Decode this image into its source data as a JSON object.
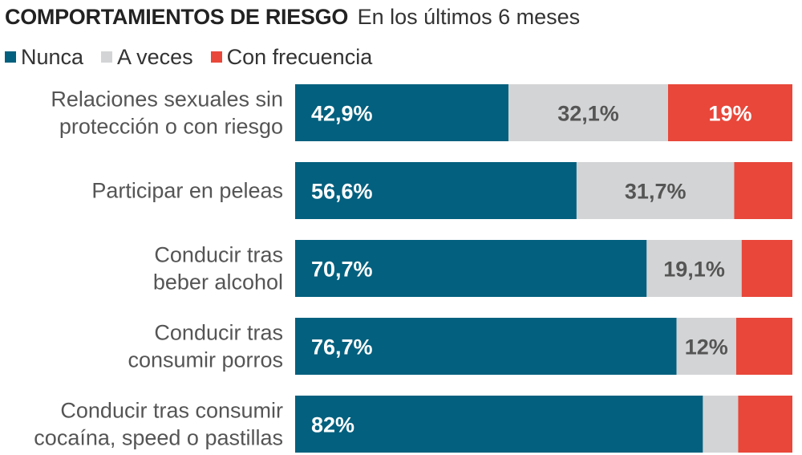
{
  "title": "COMPORTAMIENTOS DE RIESGO",
  "subtitle": "En los últimos 6 meses",
  "colors": {
    "nunca": "#03607e",
    "a_veces": "#d3d4d5",
    "frecuencia": "#e8473a"
  },
  "chart_data": {
    "type": "bar",
    "orientation": "horizontal",
    "stacked": true,
    "normalized": "100%",
    "categories": [
      [
        "Relaciones sexuales sin",
        "protección o con riesgo"
      ],
      [
        "Participar en peleas"
      ],
      [
        "Conducir tras",
        "beber alcohol"
      ],
      [
        "Conducir tras",
        "consumir porros"
      ],
      [
        "Conducir tras consumir",
        "cocaína, speed o pastillas"
      ]
    ],
    "series": [
      {
        "name": "Nunca",
        "color": "#03607e",
        "label_color": "#ffffff",
        "values": [
          42.9,
          56.6,
          70.7,
          76.7,
          82
        ],
        "labels": [
          "42,9%",
          "56,6%",
          "70,7%",
          "76,7%",
          "82%"
        ]
      },
      {
        "name": "A veces",
        "color": "#d3d4d5",
        "label_color": "#555555",
        "values": [
          32.1,
          31.7,
          19.1,
          12,
          7.1
        ],
        "labels": [
          "32,1%",
          "31,7%",
          "19,1%",
          "12%",
          ""
        ]
      },
      {
        "name": "Con frecuencia",
        "color": "#e8473a",
        "label_color": "#ffffff",
        "values": [
          19,
          5.7,
          7,
          8.5,
          7.5
        ],
        "labels": [
          "19%",
          "",
          "",
          "",
          ""
        ]
      }
    ],
    "xlim": [
      0,
      100
    ],
    "legend": "top-left",
    "grid": false
  }
}
